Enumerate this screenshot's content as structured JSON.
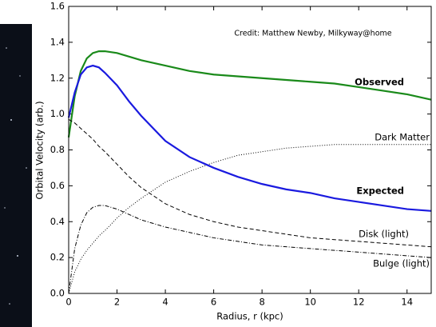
{
  "chart_data": {
    "type": "line",
    "annotation": "Credit:  Matthew Newby, Milkyway@home",
    "x_label": "Radius, r (kpc)",
    "y_label": "Orbital Velocity (arb.)",
    "x": [
      0,
      0.25,
      0.5,
      0.75,
      1,
      1.25,
      1.5,
      2,
      2.5,
      3,
      4,
      5,
      6,
      7,
      8,
      9,
      10,
      11,
      12,
      13,
      14,
      15
    ],
    "series": [
      {
        "name": "Observed",
        "color": "#1a8a1a",
        "linestyle": "solid",
        "width": 2.2,
        "values": [
          0.87,
          1.1,
          1.24,
          1.31,
          1.34,
          1.35,
          1.35,
          1.34,
          1.32,
          1.3,
          1.27,
          1.24,
          1.22,
          1.21,
          1.2,
          1.19,
          1.18,
          1.17,
          1.15,
          1.13,
          1.11,
          1.08
        ]
      },
      {
        "name": "Dark Matter",
        "color": "#000000",
        "linestyle": "dotted",
        "width": 1,
        "values": [
          0,
          0.12,
          0.19,
          0.24,
          0.28,
          0.32,
          0.35,
          0.42,
          0.48,
          0.53,
          0.62,
          0.68,
          0.73,
          0.77,
          0.79,
          0.81,
          0.82,
          0.83,
          0.83,
          0.83,
          0.83,
          0.83
        ]
      },
      {
        "name": "Expected",
        "color": "#1a1adf",
        "linestyle": "solid",
        "width": 2.2,
        "values": [
          0.98,
          1.12,
          1.22,
          1.26,
          1.27,
          1.26,
          1.23,
          1.16,
          1.07,
          0.99,
          0.85,
          0.76,
          0.7,
          0.65,
          0.61,
          0.58,
          0.56,
          0.53,
          0.51,
          0.49,
          0.47,
          0.46
        ]
      },
      {
        "name": "Disk (light)",
        "color": "#000000",
        "linestyle": "dashed",
        "width": 1,
        "values": [
          0.97,
          0.95,
          0.92,
          0.89,
          0.86,
          0.82,
          0.79,
          0.72,
          0.65,
          0.59,
          0.5,
          0.44,
          0.4,
          0.37,
          0.35,
          0.33,
          0.31,
          0.3,
          0.29,
          0.28,
          0.27,
          0.26
        ]
      },
      {
        "name": "Bulge (light)",
        "color": "#000000",
        "linestyle": "dashdot",
        "width": 1,
        "values": [
          0,
          0.25,
          0.38,
          0.45,
          0.48,
          0.49,
          0.49,
          0.47,
          0.44,
          0.41,
          0.37,
          0.34,
          0.31,
          0.29,
          0.27,
          0.26,
          0.25,
          0.24,
          0.23,
          0.22,
          0.21,
          0.2
        ]
      }
    ],
    "xlim": [
      0,
      15
    ],
    "xticks": [
      0,
      2,
      4,
      6,
      8,
      10,
      12,
      14
    ],
    "ylim": [
      0,
      1.6
    ],
    "yticks": [
      {
        "value": 0,
        "label": "0.0"
      },
      0.2,
      0.4,
      0.6,
      0.8,
      {
        "value": 1,
        "label": "1.0"
      },
      1.2,
      1.4,
      1.6
    ],
    "grid": false
  }
}
